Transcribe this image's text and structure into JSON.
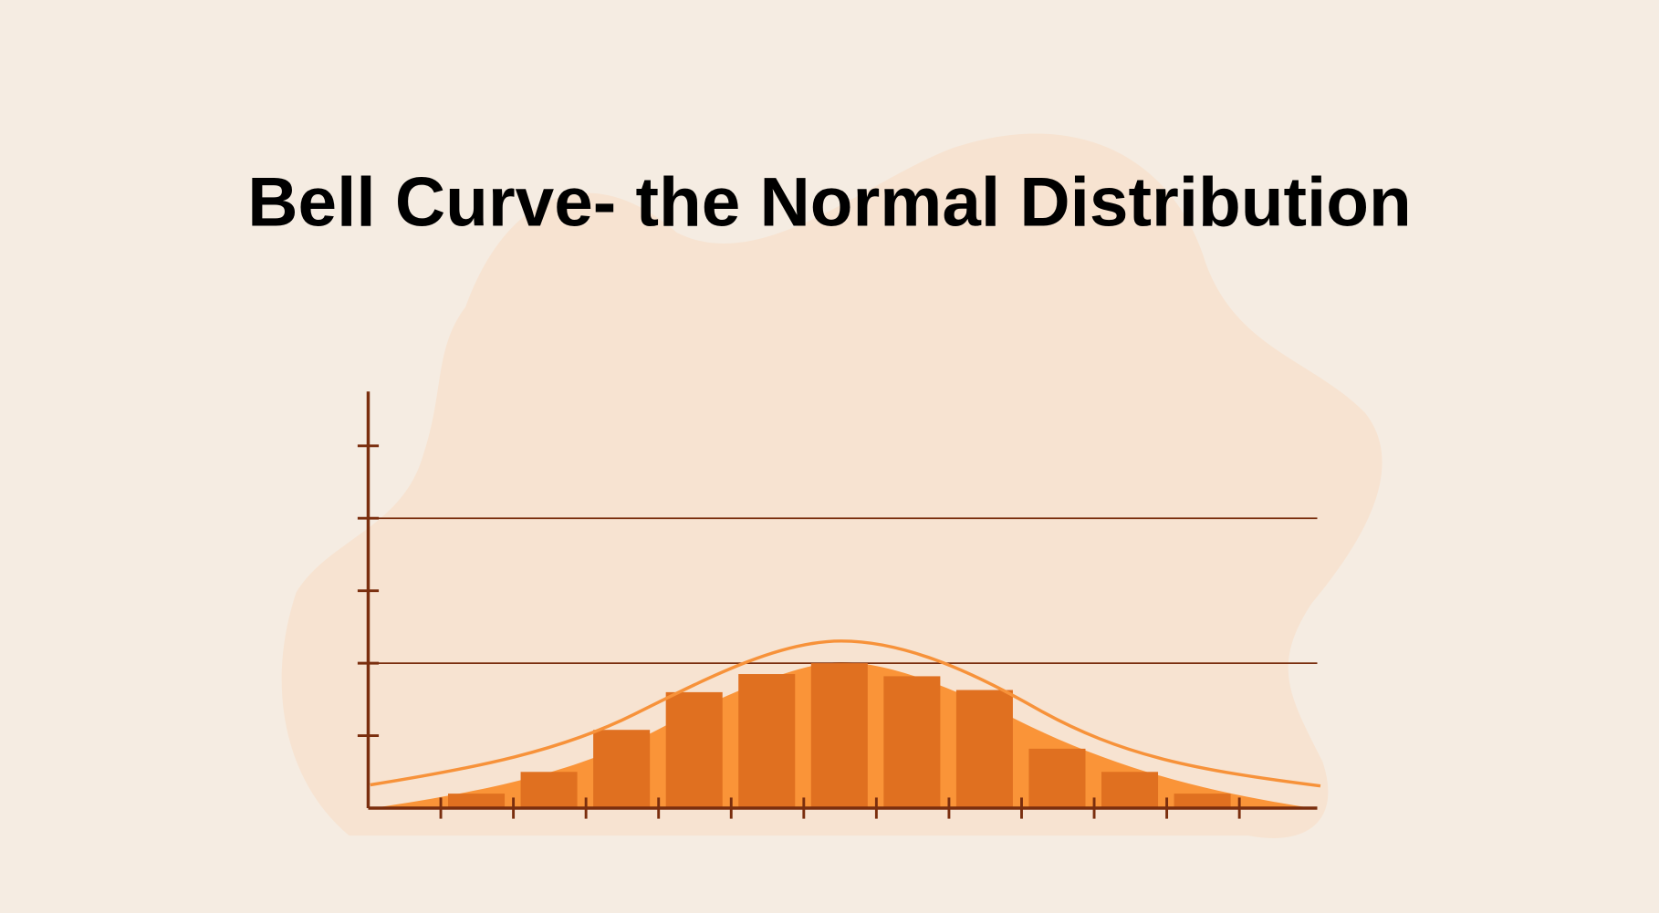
{
  "chart_data": {
    "type": "histogram",
    "title": "Bell Curve- the Normal Distribution",
    "bins": [
      1,
      2,
      3,
      4,
      5,
      6,
      7,
      8,
      9,
      10,
      11,
      12
    ],
    "values": [
      0.2,
      0.5,
      1.08,
      1.6,
      1.85,
      2.0,
      1.82,
      1.63,
      0.82,
      0.5,
      0.2
    ],
    "color": "#e07020",
    "xlim": [
      0,
      13
    ],
    "xticks": [
      1,
      2,
      3,
      4,
      5,
      6,
      7,
      8,
      9,
      10,
      11,
      12
    ],
    "ylim": [
      0,
      5.75
    ],
    "yticks": [
      1,
      2,
      3,
      4,
      5
    ],
    "grid": true
  }
}
